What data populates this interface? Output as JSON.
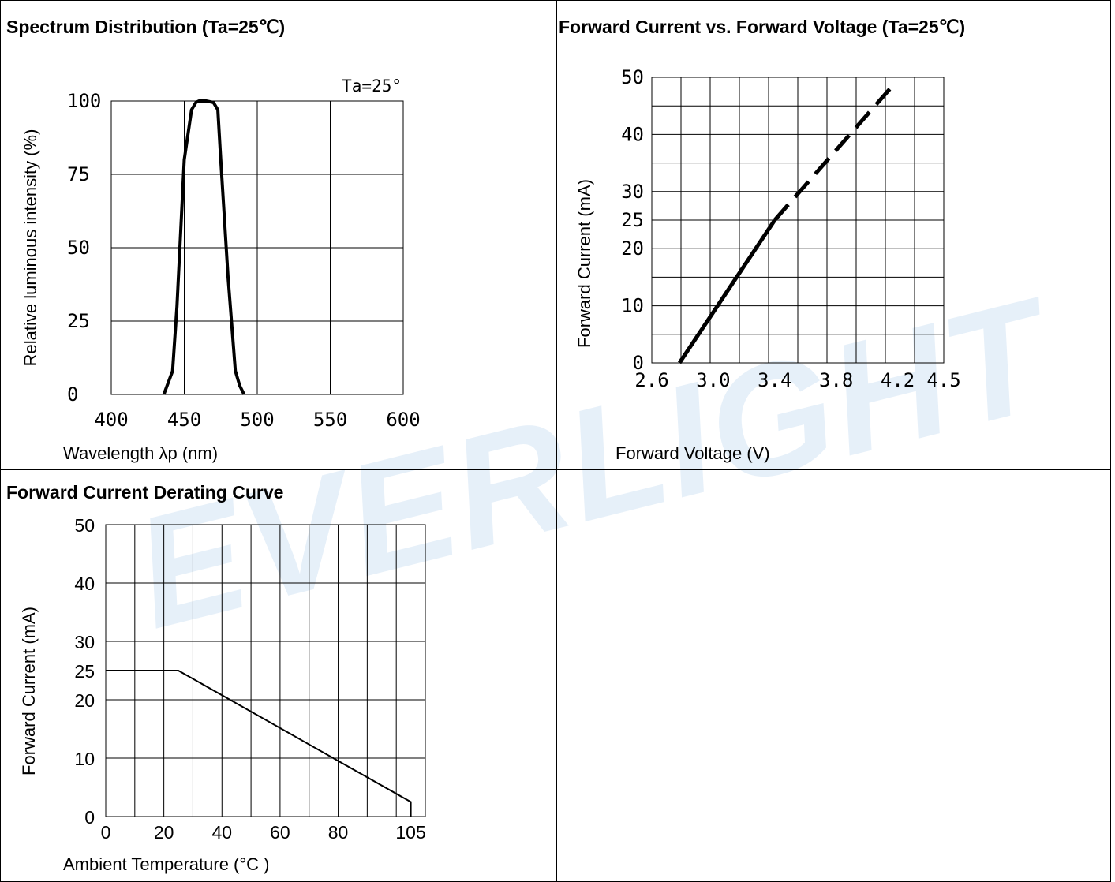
{
  "panels": {
    "spectrum_title": "Spectrum Distribution (Ta=25℃)",
    "iv_title": "Forward Current vs. Forward Voltage (Ta=25℃)",
    "derating_title": "Forward Current Derating Curve"
  },
  "watermark": "EVERLIGHT",
  "colors": {
    "line": "#000000",
    "grid": "#000000",
    "watermark": "#c9def2"
  },
  "chart_data": [
    {
      "type": "line",
      "annotation": "Ta=25°",
      "xlabel": "Wavelength λp (nm)",
      "ylabel": "Relative luminous intensity (%)",
      "xlim": [
        400,
        600
      ],
      "ylim": [
        0,
        100
      ],
      "x_ticks": [
        "400",
        "450",
        "500",
        "550",
        "600"
      ],
      "y_ticks": [
        "0",
        "25",
        "50",
        "75",
        "100"
      ],
      "grid": true,
      "x": [
        436,
        442,
        445,
        450,
        455,
        458,
        460,
        465,
        470,
        473,
        475,
        480,
        485,
        488,
        491
      ],
      "y": [
        0,
        8,
        30,
        80,
        97,
        99.5,
        100,
        100,
        99.5,
        97,
        80,
        40,
        8,
        3,
        0
      ]
    },
    {
      "type": "line",
      "xlabel": "Forward Voltage (V)",
      "ylabel": "Forward Current (mA)",
      "xlim": [
        2.6,
        4.5
      ],
      "ylim": [
        0,
        50
      ],
      "x_ticks": [
        "2.6",
        "3.0",
        "3.4",
        "3.8",
        "4.2",
        "4.5"
      ],
      "y_ticks": [
        "0",
        "10",
        "20",
        "25",
        "30",
        "40",
        "50"
      ],
      "grid": true,
      "series": [
        {
          "style": "solid",
          "x": [
            2.78,
            3.4
          ],
          "y": [
            0,
            25
          ]
        },
        {
          "style": "dashed",
          "x": [
            3.4,
            4.15
          ],
          "y": [
            25,
            48
          ]
        }
      ]
    },
    {
      "type": "line",
      "xlabel": "Ambient Temperature (°C )",
      "ylabel": "Forward Current (mA)",
      "xlim": [
        0,
        110
      ],
      "ylim": [
        0,
        50
      ],
      "x_ticks": [
        "0",
        "20",
        "40",
        "60",
        "80",
        "105"
      ],
      "y_ticks": [
        "0",
        "10",
        "20",
        "25",
        "30",
        "40",
        "50"
      ],
      "grid": true,
      "x": [
        0,
        25,
        105,
        105
      ],
      "y": [
        25,
        25,
        2.5,
        0
      ]
    }
  ]
}
